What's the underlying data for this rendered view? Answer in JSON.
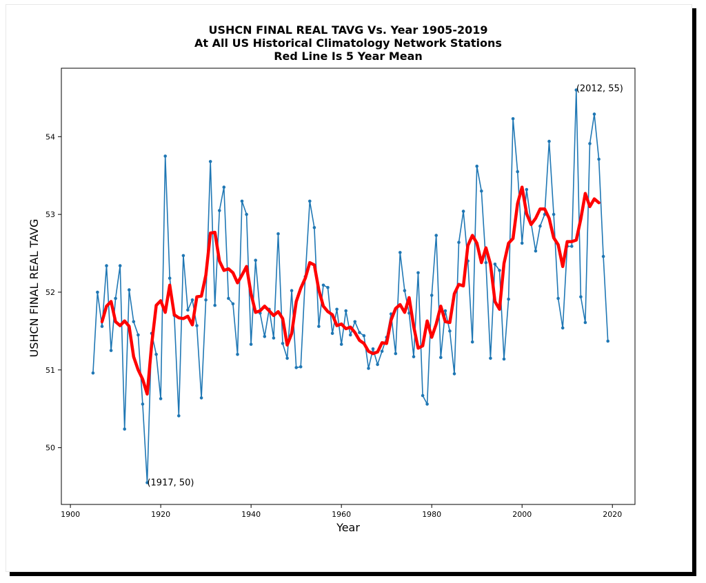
{
  "chart_data": {
    "type": "line",
    "title_lines": [
      "USHCN FINAL REAL TAVG Vs. Year 1905-2019",
      "At All US Historical Climatology Network Stations",
      "Red Line Is 5 Year Mean"
    ],
    "xlabel": "Year",
    "ylabel": "USHCN FINAL REAL TAVG",
    "xlim": [
      1898,
      2025
    ],
    "ylim": [
      49.27,
      54.88
    ],
    "xticks": [
      1900,
      1920,
      1940,
      1960,
      1980,
      2000,
      2020
    ],
    "yticks": [
      50,
      51,
      52,
      53,
      54
    ],
    "grid": false,
    "annotations": [
      {
        "text": "(1917, 50)",
        "x": 1917,
        "y": 49.55
      },
      {
        "text": "(2012, 55)",
        "x": 2012,
        "y": 54.62
      }
    ],
    "series": [
      {
        "color": "#1f77b4",
        "x": [
          1905,
          1906,
          1907,
          1908,
          1909,
          1910,
          1911,
          1912,
          1913,
          1914,
          1915,
          1916,
          1917,
          1918,
          1919,
          1920,
          1921,
          1922,
          1923,
          1924,
          1925,
          1926,
          1927,
          1928,
          1929,
          1930,
          1931,
          1932,
          1933,
          1934,
          1935,
          1936,
          1937,
          1938,
          1939,
          1940,
          1941,
          1942,
          1943,
          1944,
          1945,
          1946,
          1947,
          1948,
          1949,
          1950,
          1951,
          1952,
          1953,
          1954,
          1955,
          1956,
          1957,
          1958,
          1959,
          1960,
          1961,
          1962,
          1963,
          1964,
          1965,
          1966,
          1967,
          1968,
          1969,
          1970,
          1971,
          1972,
          1973,
          1974,
          1975,
          1976,
          1977,
          1978,
          1979,
          1980,
          1981,
          1982,
          1983,
          1984,
          1985,
          1986,
          1987,
          1988,
          1989,
          1990,
          1991,
          1992,
          1993,
          1994,
          1995,
          1996,
          1997,
          1998,
          1999,
          2000,
          2001,
          2002,
          2003,
          2004,
          2005,
          2006,
          2007,
          2008,
          2009,
          2010,
          2011,
          2012,
          2013,
          2014,
          2015,
          2016,
          2017,
          2018,
          2019
        ],
        "y": [
          50.96,
          52.0,
          51.56,
          52.34,
          51.25,
          51.92,
          52.34,
          50.24,
          52.03,
          51.62,
          51.45,
          50.56,
          49.55,
          51.47,
          51.2,
          50.63,
          53.75,
          52.18,
          51.7,
          50.41,
          52.47,
          51.77,
          51.9,
          51.57,
          50.64,
          51.9,
          53.68,
          51.83,
          53.05,
          53.35,
          51.92,
          51.85,
          51.2,
          53.17,
          53.0,
          51.33,
          52.41,
          51.73,
          51.43,
          51.78,
          51.41,
          52.75,
          51.34,
          51.15,
          52.02,
          51.03,
          51.04,
          52.2,
          53.17,
          52.83,
          51.56,
          52.09,
          52.06,
          51.47,
          51.78,
          51.33,
          51.76,
          51.45,
          51.62,
          51.48,
          51.44,
          51.02,
          51.27,
          51.07,
          51.24,
          51.42,
          51.72,
          51.21,
          52.51,
          52.02,
          51.73,
          51.17,
          52.25,
          50.67,
          50.56,
          51.96,
          52.73,
          51.16,
          51.76,
          51.5,
          50.95,
          52.64,
          53.04,
          52.4,
          51.36,
          53.62,
          53.3,
          52.38,
          51.15,
          52.36,
          52.28,
          51.14,
          51.91,
          54.23,
          53.55,
          52.63,
          53.32,
          52.89,
          52.53,
          52.85,
          53.0,
          53.94,
          53.0,
          51.92,
          51.54,
          52.59,
          52.59,
          54.6,
          51.94,
          51.61,
          53.91,
          54.29,
          53.71,
          52.46,
          51.37
        ]
      },
      {
        "color": "#ff0000",
        "x": [
          1907,
          1908,
          1909,
          1910,
          1911,
          1912,
          1913,
          1914,
          1915,
          1916,
          1917,
          1918,
          1919,
          1920,
          1921,
          1922,
          1923,
          1924,
          1925,
          1926,
          1927,
          1928,
          1929,
          1930,
          1931,
          1932,
          1933,
          1934,
          1935,
          1936,
          1937,
          1938,
          1939,
          1940,
          1941,
          1942,
          1943,
          1944,
          1945,
          1946,
          1947,
          1948,
          1949,
          1950,
          1951,
          1952,
          1953,
          1954,
          1955,
          1956,
          1957,
          1958,
          1959,
          1960,
          1961,
          1962,
          1963,
          1964,
          1965,
          1966,
          1967,
          1968,
          1969,
          1970,
          1971,
          1972,
          1973,
          1974,
          1975,
          1976,
          1977,
          1978,
          1979,
          1980,
          1981,
          1982,
          1983,
          1984,
          1985,
          1986,
          1987,
          1988,
          1989,
          1990,
          1991,
          1992,
          1993,
          1994,
          1995,
          1996,
          1997,
          1998,
          1999,
          2000,
          2001,
          2002,
          2003,
          2004,
          2005,
          2006,
          2007,
          2008,
          2009,
          2010,
          2011,
          2012,
          2013,
          2014,
          2015,
          2016,
          2017
        ],
        "y": [
          51.62,
          51.82,
          51.88,
          51.62,
          51.57,
          51.63,
          51.56,
          51.17,
          51.0,
          50.88,
          50.69,
          51.33,
          51.83,
          51.89,
          51.74,
          52.09,
          51.71,
          51.67,
          51.66,
          51.69,
          51.58,
          51.94,
          51.95,
          52.22,
          52.76,
          52.77,
          52.4,
          52.28,
          52.3,
          52.25,
          52.12,
          52.22,
          52.33,
          51.98,
          51.74,
          51.76,
          51.82,
          51.76,
          51.7,
          51.75,
          51.66,
          51.32,
          51.47,
          51.88,
          52.05,
          52.18,
          52.38,
          52.35,
          52.03,
          51.82,
          51.75,
          51.71,
          51.57,
          51.59,
          51.53,
          51.55,
          51.48,
          51.38,
          51.34,
          51.24,
          51.21,
          51.23,
          51.35,
          51.34,
          51.64,
          51.79,
          51.84,
          51.74,
          51.93,
          51.56,
          51.28,
          51.31,
          51.63,
          51.42,
          51.59,
          51.82,
          51.62,
          51.61,
          51.98,
          52.1,
          52.08,
          52.6,
          52.73,
          52.63,
          52.38,
          52.57,
          52.36,
          51.88,
          51.78,
          52.37,
          52.63,
          52.69,
          53.14,
          53.35,
          53.01,
          52.87,
          52.95,
          53.07,
          53.07,
          52.95,
          52.7,
          52.61,
          52.33,
          52.65,
          52.65,
          52.67,
          52.94,
          53.27,
          53.1,
          53.2,
          53.15
        ]
      }
    ]
  }
}
